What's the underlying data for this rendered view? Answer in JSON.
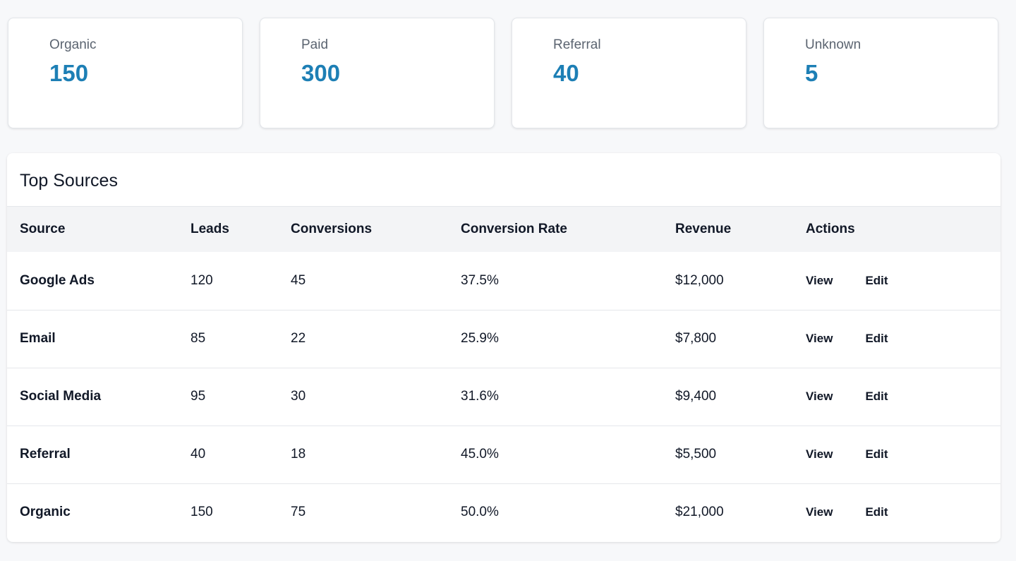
{
  "stats": [
    {
      "label": "Organic",
      "value": "150"
    },
    {
      "label": "Paid",
      "value": "300"
    },
    {
      "label": "Referral",
      "value": "40"
    },
    {
      "label": "Unknown",
      "value": "5"
    }
  ],
  "table": {
    "title": "Top Sources",
    "columns": [
      "Source",
      "Leads",
      "Conversions",
      "Conversion Rate",
      "Revenue",
      "Actions"
    ],
    "rows": [
      {
        "source": "Google Ads",
        "leads": "120",
        "conversions": "45",
        "rate": "37.5%",
        "revenue": "$12,000"
      },
      {
        "source": "Email",
        "leads": "85",
        "conversions": "22",
        "rate": "25.9%",
        "revenue": "$7,800"
      },
      {
        "source": "Social Media",
        "leads": "95",
        "conversions": "30",
        "rate": "31.6%",
        "revenue": "$9,400"
      },
      {
        "source": "Referral",
        "leads": "40",
        "conversions": "18",
        "rate": "45.0%",
        "revenue": "$5,500"
      },
      {
        "source": "Organic",
        "leads": "150",
        "conversions": "75",
        "rate": "50.0%",
        "revenue": "$21,000"
      }
    ],
    "actions": {
      "view_label": "View",
      "edit_label": "Edit"
    }
  },
  "colors": {
    "accent": "#1d7fb5",
    "background": "#f7f8fa",
    "header_bg": "#f3f4f6"
  }
}
